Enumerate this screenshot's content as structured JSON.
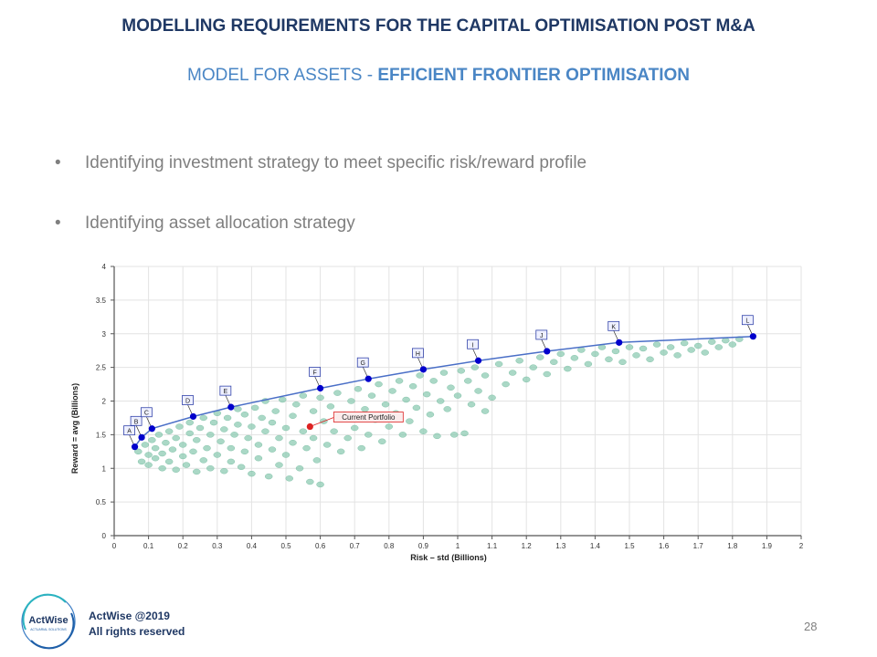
{
  "slide": {
    "title": "MODELLING REQUIREMENTS FOR THE CAPITAL OPTIMISATION POST M&A",
    "subtitle_prefix": "MODEL FOR ASSETS - ",
    "subtitle_emphasis": "EFFICIENT FRONTIER OPTIMISATION",
    "bullets": [
      "Identifying investment strategy to meet specific risk/reward profile",
      "Identifying asset allocation strategy"
    ],
    "page_number": "28"
  },
  "footer": {
    "logo_text": "ActWise",
    "logo_subtext": "ACTUARIAL SOLUTIONS",
    "copyright": "ActWise @2019",
    "rights": "All rights reserved"
  },
  "colors": {
    "title": "#1f3864",
    "subtitle": "#4a86c5",
    "frontier_line": "#4a6fc7",
    "frontier_points": "#0000cc",
    "cloud": "#8ecbb3",
    "current_portfolio": "#dd2222"
  },
  "chart_data": {
    "type": "scatter",
    "title": "",
    "xlabel": "Risk – std (Billions)",
    "ylabel": "Reward = avg (Billions)",
    "xlim": [
      0,
      2
    ],
    "ylim": [
      0,
      4
    ],
    "xticks": [
      "0",
      "0.1",
      "0.2",
      "0.3",
      "0.4",
      "0.5",
      "0.6",
      "0.7",
      "0.8",
      "0.9",
      "1",
      "1.1",
      "1.2",
      "1.3",
      "1.4",
      "1.5",
      "1.6",
      "1.7",
      "1.8",
      "1.9",
      "2"
    ],
    "yticks": [
      "0",
      "0.5",
      "1",
      "1.5",
      "2",
      "2.5",
      "3",
      "3.5",
      "4"
    ],
    "grid": true,
    "series": [
      {
        "points": [
          {
            "label": "A",
            "x": 0.06,
            "y": 1.32
          },
          {
            "label": "B",
            "x": 0.08,
            "y": 1.46
          },
          {
            "label": "C",
            "x": 0.11,
            "y": 1.59
          },
          {
            "label": "D",
            "x": 0.23,
            "y": 1.77
          },
          {
            "label": "E",
            "x": 0.34,
            "y": 1.91
          },
          {
            "label": "F",
            "x": 0.6,
            "y": 2.19
          },
          {
            "label": "G",
            "x": 0.74,
            "y": 2.33
          },
          {
            "label": "H",
            "x": 0.9,
            "y": 2.47
          },
          {
            "label": "I",
            "x": 1.06,
            "y": 2.6
          },
          {
            "label": "J",
            "x": 1.26,
            "y": 2.74
          },
          {
            "label": "K",
            "x": 1.47,
            "y": 2.87
          },
          {
            "label": "L",
            "x": 1.86,
            "y": 2.96
          }
        ]
      }
    ],
    "current_portfolio": {
      "label": "Current Portfolio",
      "x": 0.57,
      "y": 1.62
    },
    "cloud": [
      [
        0.07,
        1.25
      ],
      [
        0.08,
        1.1
      ],
      [
        0.09,
        1.35
      ],
      [
        0.1,
        1.05
      ],
      [
        0.1,
        1.2
      ],
      [
        0.11,
        1.42
      ],
      [
        0.12,
        1.15
      ],
      [
        0.12,
        1.3
      ],
      [
        0.13,
        1.5
      ],
      [
        0.14,
        1.0
      ],
      [
        0.14,
        1.22
      ],
      [
        0.15,
        1.38
      ],
      [
        0.16,
        1.55
      ],
      [
        0.16,
        1.1
      ],
      [
        0.17,
        1.28
      ],
      [
        0.18,
        0.98
      ],
      [
        0.18,
        1.45
      ],
      [
        0.19,
        1.62
      ],
      [
        0.2,
        1.18
      ],
      [
        0.2,
        1.35
      ],
      [
        0.21,
        1.05
      ],
      [
        0.22,
        1.52
      ],
      [
        0.22,
        1.68
      ],
      [
        0.23,
        1.25
      ],
      [
        0.24,
        0.95
      ],
      [
        0.24,
        1.42
      ],
      [
        0.25,
        1.6
      ],
      [
        0.26,
        1.12
      ],
      [
        0.26,
        1.75
      ],
      [
        0.27,
        1.3
      ],
      [
        0.28,
        1.5
      ],
      [
        0.28,
        1.0
      ],
      [
        0.29,
        1.68
      ],
      [
        0.3,
        1.2
      ],
      [
        0.3,
        1.82
      ],
      [
        0.31,
        1.4
      ],
      [
        0.32,
        0.96
      ],
      [
        0.32,
        1.58
      ],
      [
        0.33,
        1.75
      ],
      [
        0.34,
        1.1
      ],
      [
        0.34,
        1.3
      ],
      [
        0.35,
        1.5
      ],
      [
        0.36,
        1.88
      ],
      [
        0.36,
        1.65
      ],
      [
        0.37,
        1.02
      ],
      [
        0.38,
        1.25
      ],
      [
        0.38,
        1.8
      ],
      [
        0.39,
        1.45
      ],
      [
        0.4,
        1.62
      ],
      [
        0.4,
        0.92
      ],
      [
        0.41,
        1.9
      ],
      [
        0.42,
        1.15
      ],
      [
        0.42,
        1.35
      ],
      [
        0.43,
        1.75
      ],
      [
        0.44,
        1.55
      ],
      [
        0.44,
        2.0
      ],
      [
        0.45,
        0.88
      ],
      [
        0.46,
        1.28
      ],
      [
        0.46,
        1.68
      ],
      [
        0.47,
        1.85
      ],
      [
        0.48,
        1.05
      ],
      [
        0.48,
        1.45
      ],
      [
        0.49,
        2.02
      ],
      [
        0.5,
        1.6
      ],
      [
        0.5,
        1.2
      ],
      [
        0.51,
        0.85
      ],
      [
        0.52,
        1.78
      ],
      [
        0.52,
        1.38
      ],
      [
        0.53,
        1.95
      ],
      [
        0.54,
        1.0
      ],
      [
        0.55,
        1.55
      ],
      [
        0.55,
        2.08
      ],
      [
        0.56,
        1.3
      ],
      [
        0.57,
        0.8
      ],
      [
        0.58,
        1.85
      ],
      [
        0.58,
        1.45
      ],
      [
        0.59,
        1.12
      ],
      [
        0.6,
        0.76
      ],
      [
        0.6,
        2.05
      ],
      [
        0.61,
        1.7
      ],
      [
        0.62,
        1.35
      ],
      [
        0.63,
        1.92
      ],
      [
        0.64,
        1.55
      ],
      [
        0.65,
        2.12
      ],
      [
        0.66,
        1.25
      ],
      [
        0.67,
        1.8
      ],
      [
        0.68,
        1.45
      ],
      [
        0.69,
        2.0
      ],
      [
        0.7,
        1.6
      ],
      [
        0.71,
        2.18
      ],
      [
        0.72,
        1.3
      ],
      [
        0.73,
        1.88
      ],
      [
        0.74,
        1.5
      ],
      [
        0.75,
        2.08
      ],
      [
        0.76,
        1.72
      ],
      [
        0.77,
        2.25
      ],
      [
        0.78,
        1.4
      ],
      [
        0.79,
        1.95
      ],
      [
        0.8,
        1.62
      ],
      [
        0.81,
        2.15
      ],
      [
        0.82,
        1.82
      ],
      [
        0.83,
        2.3
      ],
      [
        0.84,
        1.5
      ],
      [
        0.85,
        2.02
      ],
      [
        0.86,
        1.7
      ],
      [
        0.87,
        2.22
      ],
      [
        0.88,
        1.9
      ],
      [
        0.89,
        2.38
      ],
      [
        0.9,
        1.55
      ],
      [
        0.91,
        2.1
      ],
      [
        0.92,
        1.8
      ],
      [
        0.93,
        2.3
      ],
      [
        0.94,
        1.48
      ],
      [
        0.95,
        2.0
      ],
      [
        0.96,
        2.42
      ],
      [
        0.97,
        1.88
      ],
      [
        0.98,
        2.2
      ],
      [
        0.99,
        1.5
      ],
      [
        1.0,
        2.08
      ],
      [
        1.01,
        2.45
      ],
      [
        1.02,
        1.52
      ],
      [
        1.03,
        2.3
      ],
      [
        1.04,
        1.95
      ],
      [
        1.05,
        2.5
      ],
      [
        1.06,
        2.15
      ],
      [
        1.08,
        1.85
      ],
      [
        1.08,
        2.38
      ],
      [
        1.1,
        2.05
      ],
      [
        1.12,
        2.55
      ],
      [
        1.14,
        2.25
      ],
      [
        1.16,
        2.42
      ],
      [
        1.18,
        2.6
      ],
      [
        1.2,
        2.32
      ],
      [
        1.22,
        2.5
      ],
      [
        1.24,
        2.65
      ],
      [
        1.26,
        2.4
      ],
      [
        1.28,
        2.58
      ],
      [
        1.3,
        2.7
      ],
      [
        1.32,
        2.48
      ],
      [
        1.34,
        2.64
      ],
      [
        1.36,
        2.76
      ],
      [
        1.38,
        2.55
      ],
      [
        1.4,
        2.7
      ],
      [
        1.42,
        2.8
      ],
      [
        1.44,
        2.62
      ],
      [
        1.46,
        2.74
      ],
      [
        1.48,
        2.58
      ],
      [
        1.5,
        2.8
      ],
      [
        1.52,
        2.68
      ],
      [
        1.54,
        2.78
      ],
      [
        1.56,
        2.62
      ],
      [
        1.58,
        2.84
      ],
      [
        1.6,
        2.72
      ],
      [
        1.62,
        2.8
      ],
      [
        1.64,
        2.68
      ],
      [
        1.66,
        2.86
      ],
      [
        1.68,
        2.76
      ],
      [
        1.7,
        2.82
      ],
      [
        1.72,
        2.72
      ],
      [
        1.74,
        2.88
      ],
      [
        1.76,
        2.8
      ],
      [
        1.78,
        2.9
      ],
      [
        1.8,
        2.84
      ],
      [
        1.82,
        2.92
      ]
    ]
  }
}
